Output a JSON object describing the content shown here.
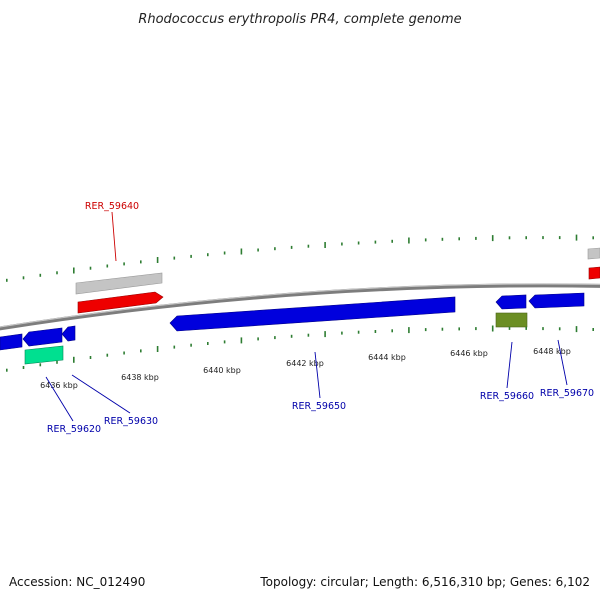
{
  "title": "Rhodococcus erythropolis PR4, complete genome",
  "footer": {
    "accession": "Accession: NC_012490",
    "summary": "Topology: circular; Length: 6,516,310 bp; Genes: 6,102"
  },
  "colors": {
    "backbone": "#8a8a8a",
    "forward_gene": "#ff0000",
    "reverse_gene": "#0000dd",
    "rna_gene": "#00dd88",
    "feature_olive": "#6b8e23",
    "neutral_bar": "#bbbbbb",
    "tick": "#2e7d32",
    "label_forward": "#cc0000",
    "label_reverse": "#0000aa"
  },
  "ticks": [
    {
      "label": "6436 kbp"
    },
    {
      "label": "6438 kbp"
    },
    {
      "label": "6440 kbp"
    },
    {
      "label": "6442 kbp"
    },
    {
      "label": "6444 kbp"
    },
    {
      "label": "6446 kbp"
    },
    {
      "label": "6448 kbp"
    }
  ],
  "genes": [
    {
      "id": "RER_59620",
      "strand": "reverse"
    },
    {
      "id": "RER_59630",
      "strand": "reverse"
    },
    {
      "id": "RER_59640",
      "strand": "forward"
    },
    {
      "id": "RER_59650",
      "strand": "reverse"
    },
    {
      "id": "RER_59660",
      "strand": "reverse"
    },
    {
      "id": "RER_59670",
      "strand": "reverse"
    }
  ]
}
